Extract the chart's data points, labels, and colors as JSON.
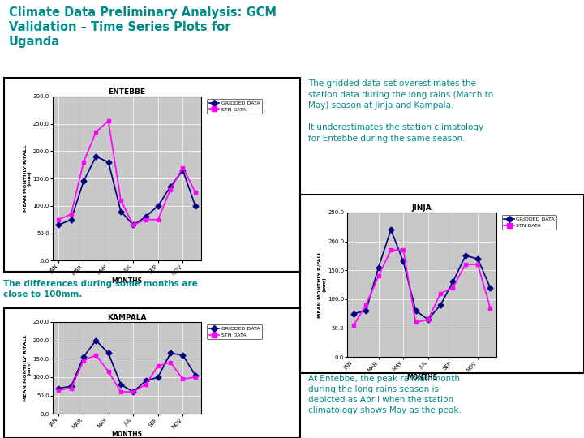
{
  "title_line1": "Climate Data Preliminary Analysis: GCM",
  "title_line2": "Validation – Time Series Plots for",
  "title_line3": "Uganda",
  "title_color": "#008B8B",
  "bg_color": "#ffffff",
  "months": [
    "JAN",
    "MAR",
    "MAY",
    "JUL",
    "SEP",
    "NOV"
  ],
  "month_indices": [
    0,
    2,
    4,
    6,
    8,
    10
  ],
  "entebbe": {
    "title": "ENTEBBE",
    "gridded": [
      65,
      75,
      145,
      190,
      180,
      90,
      65,
      80,
      100,
      135,
      165,
      100
    ],
    "stn": [
      75,
      85,
      180,
      235,
      255,
      110,
      65,
      75,
      75,
      130,
      170,
      125
    ],
    "ylim": [
      0,
      300
    ],
    "yticks": [
      0.0,
      50.0,
      100.0,
      150.0,
      200.0,
      250.0,
      300.0
    ]
  },
  "jinja": {
    "title": "JINJA",
    "gridded": [
      75,
      80,
      155,
      220,
      165,
      80,
      65,
      90,
      130,
      175,
      170,
      120
    ],
    "stn": [
      55,
      90,
      140,
      185,
      185,
      60,
      65,
      110,
      120,
      160,
      160,
      85
    ],
    "ylim": [
      0,
      250
    ],
    "yticks": [
      0.0,
      50.0,
      100.0,
      150.0,
      200.0,
      250.0
    ]
  },
  "kampala": {
    "title": "KAMPALA",
    "gridded": [
      70,
      75,
      155,
      200,
      165,
      80,
      60,
      90,
      100,
      165,
      160,
      105
    ],
    "stn": [
      65,
      70,
      145,
      160,
      115,
      60,
      60,
      80,
      130,
      140,
      95,
      100
    ],
    "ylim": [
      0,
      250
    ],
    "yticks": [
      0.0,
      50.0,
      100.0,
      150.0,
      200.0,
      250.0
    ]
  },
  "text1": "The gridded data set overestimates the\nstation data during the long rains (March to\nMay) season at Jinja and Kampala.\n\nIt underestimates the station climatology\nfor Entebbe during the same season.",
  "text2": "The differences during some months are\nclose to 100mm.",
  "text3": "At Entebbe, the peak rainfall month\nduring the long rains season is\ndepicted as April when the station\nclimatology shows May as the peak.",
  "text_color": "#008B8B",
  "text2_bg": "#90EE90",
  "plot_bg": "#C8C8C8",
  "gridded_color": "#000080",
  "stn_color": "#FF00FF",
  "axis_ylabel": "MEAN MONTHLY R/FALL\n(mm)",
  "axis_xlabel": "MONTHS",
  "legend_gridded": "GRIDDED DATA",
  "legend_stn": "STN DATA",
  "plot_border_color": "#000000"
}
